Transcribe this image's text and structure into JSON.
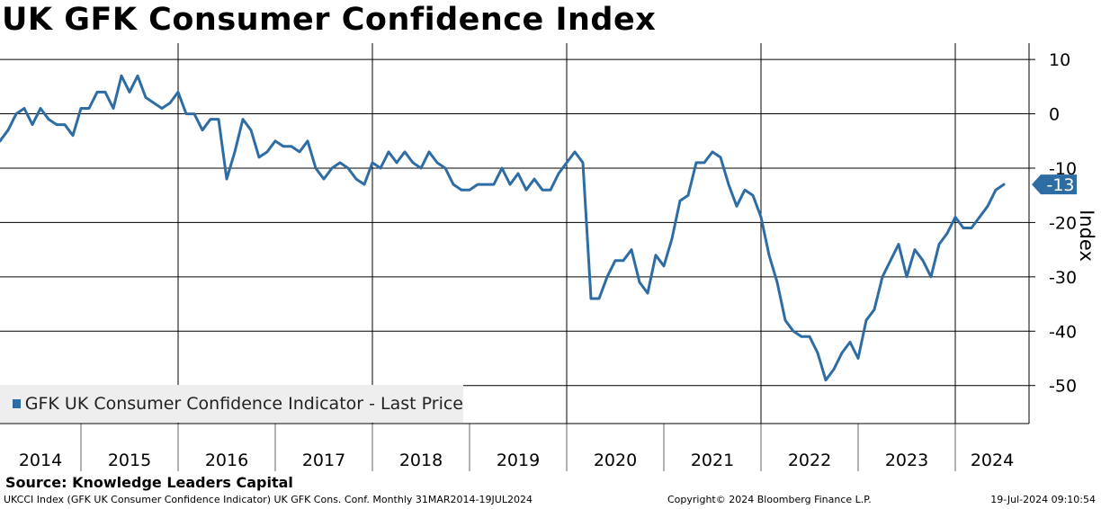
{
  "title": "UK GFK Consumer Confidence Index",
  "source": "Source: Knowledge Leaders Capital",
  "footer": {
    "left": "UKCCI Index (GFK UK Consumer Confidence Indicator) UK GFK Cons. Conf.  Monthly 31MAR2014-19JUL2024",
    "middle": "Copyright© 2024 Bloomberg Finance L.P.",
    "right": "19-Jul-2024 09:10:54"
  },
  "legend": {
    "label": "GFK UK Consumer Confidence Indicator - Last Price"
  },
  "colors": {
    "line": "#2e6da4",
    "grid": "#000000",
    "legend_bg": "#eeeeee"
  },
  "chart_data": {
    "type": "line",
    "title": "UK GFK Consumer Confidence Index",
    "ylabel": "Index",
    "xlabel": "",
    "ylim": [
      -57,
      13
    ],
    "yticks": [
      10,
      0,
      -10,
      -20,
      -30,
      -40,
      -50
    ],
    "ytick_labels": [
      "10",
      "0",
      "-10",
      "-20",
      "-30",
      "-40",
      "-50"
    ],
    "x_start": "Mar 2014",
    "x_end": "Jul 2024",
    "frequency": "monthly",
    "year_labels": [
      "2014",
      "2015",
      "2016",
      "2017",
      "2018",
      "2019",
      "2020",
      "2021",
      "2022",
      "2023",
      "2024"
    ],
    "last_value_label": "-13",
    "series": [
      {
        "name": "GFK UK Consumer Confidence Indicator - Last Price",
        "values": [
          -5,
          -3,
          0,
          1,
          -2,
          1,
          -1,
          -2,
          -2,
          -4,
          1,
          1,
          4,
          4,
          1,
          7,
          4,
          7,
          3,
          2,
          1,
          2,
          4,
          0,
          0,
          -3,
          -1,
          -1,
          -12,
          -7,
          -1,
          -3,
          -8,
          -7,
          -5,
          -6,
          -6,
          -7,
          -5,
          -10,
          -12,
          -10,
          -9,
          -10,
          -12,
          -13,
          -9,
          -10,
          -7,
          -9,
          -7,
          -9,
          -10,
          -7,
          -9,
          -10,
          -13,
          -14,
          -14,
          -13,
          -13,
          -13,
          -10,
          -13,
          -11,
          -14,
          -12,
          -14,
          -14,
          -11,
          -9,
          -7,
          -9,
          -34,
          -34,
          -30,
          -27,
          -27,
          -25,
          -31,
          -33,
          -26,
          -28,
          -23,
          -16,
          -15,
          -9,
          -9,
          -7,
          -8,
          -13,
          -17,
          -14,
          -15,
          -19,
          -26,
          -31,
          -38,
          -40,
          -41,
          -41,
          -44,
          -49,
          -47,
          -44,
          -42,
          -45,
          -38,
          -36,
          -30,
          -27,
          -24,
          -30,
          -25,
          -27,
          -30,
          -24,
          -22,
          -19,
          -21,
          -21,
          -19,
          -17,
          -14,
          -13
        ]
      }
    ]
  }
}
